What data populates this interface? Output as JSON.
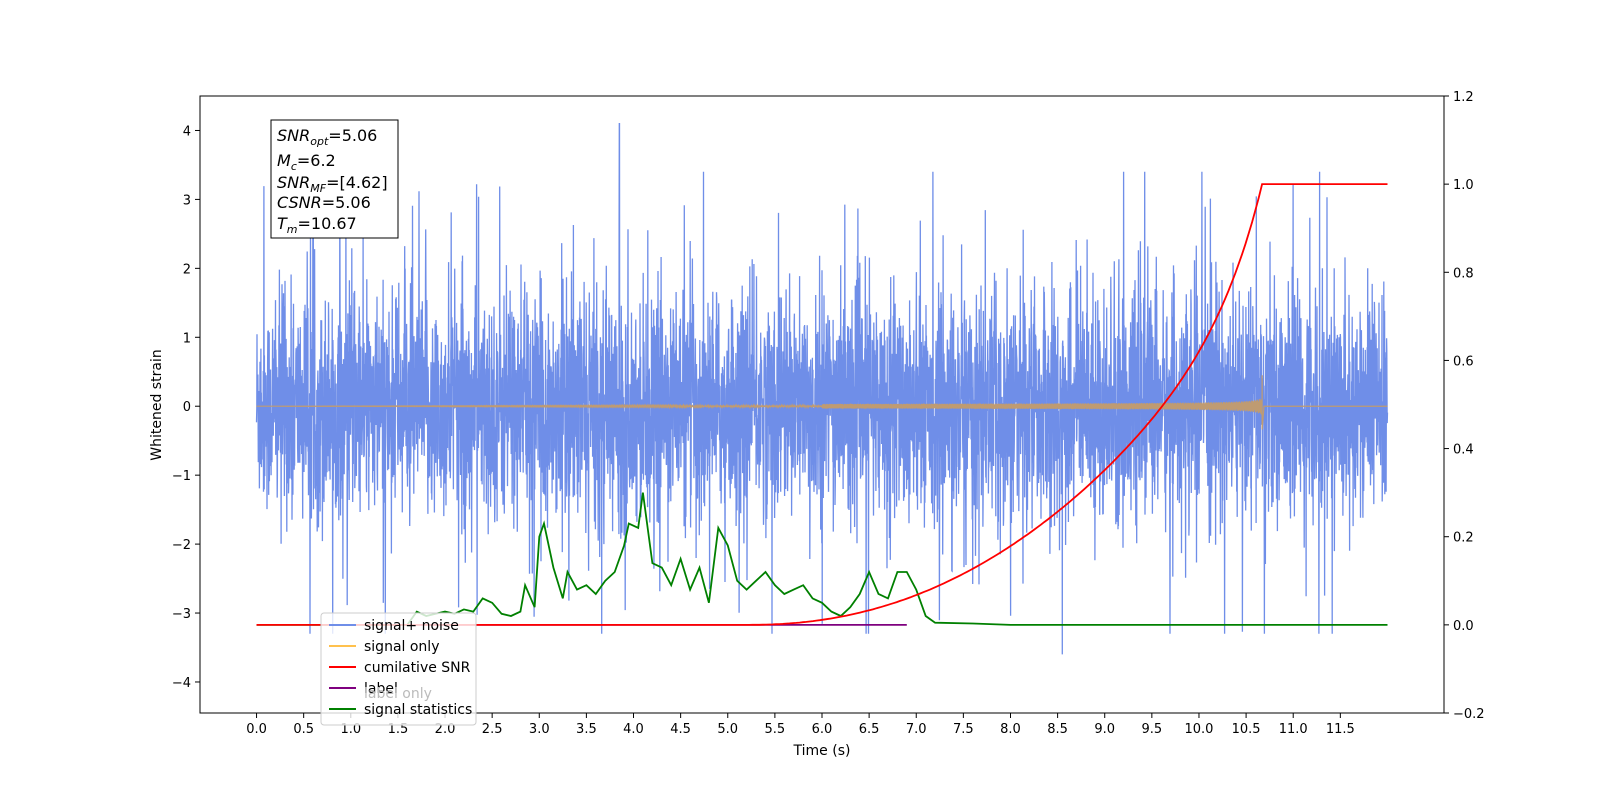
{
  "chart_data": {
    "type": "line",
    "xlabel": "Time (s)",
    "ylabel": "Whitened strain",
    "xlim": [
      -0.6,
      12.6
    ],
    "ylim": [
      -4.45,
      4.5
    ],
    "y2lim": [
      -0.2,
      1.2
    ],
    "x_ticks": [
      "0.0",
      "0.5",
      "1.0",
      "1.5",
      "2.0",
      "2.5",
      "3.0",
      "3.5",
      "4.0",
      "4.5",
      "5.0",
      "5.5",
      "6.0",
      "6.5",
      "7.0",
      "7.5",
      "8.0",
      "8.5",
      "9.0",
      "9.5",
      "10.0",
      "10.5",
      "11.0",
      "11.5"
    ],
    "y_ticks": [
      "−4",
      "−3",
      "−2",
      "−1",
      "0",
      "1",
      "2",
      "3",
      "4"
    ],
    "y2_ticks": [
      "−0.2",
      "0.0",
      "0.2",
      "0.4",
      "0.6",
      "0.8",
      "1.0",
      "1.2"
    ],
    "legend_position": "lower-left",
    "info_box": {
      "snr_opt": {
        "label": "SNR",
        "sub": "opt",
        "value": "=5.06"
      },
      "mc": {
        "label": "M",
        "sub": "c",
        "value": "=6.2"
      },
      "snr_mf": {
        "label": "SNR",
        "sub": "MF",
        "value": "=[4.62]"
      },
      "csnr": {
        "label": "CSNR",
        "value": "=5.06"
      },
      "tm": {
        "label": "T",
        "sub": "m",
        "value": "=10.67"
      }
    },
    "series": [
      {
        "name": "signal+ noise",
        "color": "#6f8ee8",
        "axis": "left",
        "noise": {
          "x_start": 0.0,
          "x_end": 12.0,
          "core_amplitude": 1.2,
          "envelope_max": 2.4,
          "envelope_min": -2.2,
          "max_spike": 4.1,
          "max_spike_x": 3.85,
          "min_spike": -3.6,
          "min_spike_x": 8.55
        }
      },
      {
        "name": "signal only",
        "color": "#ffc14d",
        "axis": "left",
        "chirp": {
          "x_start": 0.0,
          "x_end": 12.0,
          "merger_x": 10.67,
          "peak_amplitude": 0.45
        }
      },
      {
        "name": "cumilative SNR",
        "color": "#ff0000",
        "axis": "right",
        "points": [
          [
            0.0,
            0.0
          ],
          [
            5.5,
            0.0
          ],
          [
            6.0,
            0.01
          ],
          [
            6.5,
            0.04
          ],
          [
            7.0,
            0.1
          ],
          [
            7.5,
            0.16
          ],
          [
            8.0,
            0.22
          ],
          [
            8.5,
            0.28
          ],
          [
            9.0,
            0.36
          ],
          [
            9.5,
            0.46
          ],
          [
            10.0,
            0.6
          ],
          [
            10.3,
            0.72
          ],
          [
            10.5,
            0.84
          ],
          [
            10.6,
            0.92
          ],
          [
            10.67,
            1.0
          ],
          [
            12.0,
            1.0
          ]
        ]
      },
      {
        "name": "label",
        "color": "#7f007f",
        "axis": "right",
        "points": [
          [
            1.6,
            0.0
          ],
          [
            6.9,
            0.0
          ]
        ]
      },
      {
        "name": "label only",
        "color": "#cccccc",
        "axis": "right",
        "points": []
      },
      {
        "name": "signal statistics",
        "color": "#008000",
        "axis": "right",
        "points": [
          [
            0.0,
            0.0
          ],
          [
            1.6,
            0.0
          ],
          [
            1.7,
            0.03
          ],
          [
            1.8,
            0.02
          ],
          [
            1.9,
            0.025
          ],
          [
            2.0,
            0.03
          ],
          [
            2.1,
            0.025
          ],
          [
            2.2,
            0.035
          ],
          [
            2.3,
            0.03
          ],
          [
            2.4,
            0.06
          ],
          [
            2.5,
            0.05
          ],
          [
            2.6,
            0.025
          ],
          [
            2.7,
            0.02
          ],
          [
            2.8,
            0.03
          ],
          [
            2.85,
            0.09
          ],
          [
            2.95,
            0.04
          ],
          [
            3.0,
            0.2
          ],
          [
            3.05,
            0.23
          ],
          [
            3.15,
            0.13
          ],
          [
            3.25,
            0.06
          ],
          [
            3.3,
            0.12
          ],
          [
            3.4,
            0.08
          ],
          [
            3.5,
            0.09
          ],
          [
            3.6,
            0.07
          ],
          [
            3.7,
            0.1
          ],
          [
            3.8,
            0.12
          ],
          [
            3.9,
            0.18
          ],
          [
            3.95,
            0.23
          ],
          [
            4.05,
            0.22
          ],
          [
            4.1,
            0.3
          ],
          [
            4.2,
            0.14
          ],
          [
            4.3,
            0.13
          ],
          [
            4.4,
            0.09
          ],
          [
            4.5,
            0.15
          ],
          [
            4.6,
            0.08
          ],
          [
            4.7,
            0.13
          ],
          [
            4.8,
            0.05
          ],
          [
            4.9,
            0.22
          ],
          [
            5.0,
            0.18
          ],
          [
            5.1,
            0.1
          ],
          [
            5.2,
            0.08
          ],
          [
            5.3,
            0.1
          ],
          [
            5.4,
            0.12
          ],
          [
            5.5,
            0.09
          ],
          [
            5.6,
            0.07
          ],
          [
            5.7,
            0.08
          ],
          [
            5.8,
            0.09
          ],
          [
            5.9,
            0.06
          ],
          [
            6.0,
            0.05
          ],
          [
            6.1,
            0.03
          ],
          [
            6.2,
            0.02
          ],
          [
            6.3,
            0.04
          ],
          [
            6.4,
            0.07
          ],
          [
            6.5,
            0.12
          ],
          [
            6.6,
            0.07
          ],
          [
            6.7,
            0.06
          ],
          [
            6.8,
            0.12
          ],
          [
            6.9,
            0.12
          ],
          [
            7.0,
            0.08
          ],
          [
            7.1,
            0.02
          ],
          [
            7.2,
            0.005
          ],
          [
            7.6,
            0.003
          ],
          [
            8.0,
            0.0
          ],
          [
            12.0,
            0.0
          ]
        ]
      }
    ]
  }
}
